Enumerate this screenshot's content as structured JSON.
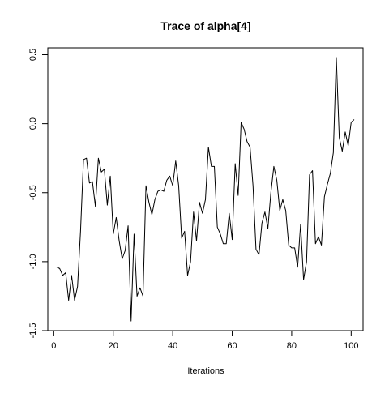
{
  "chart_data": {
    "type": "line",
    "title": "Trace of alpha[4]",
    "xlabel": "Iterations",
    "ylabel": "",
    "xlim": [
      -2,
      104
    ],
    "ylim": [
      -1.5,
      0.55
    ],
    "xticks": [
      "0",
      "20",
      "40",
      "60",
      "80",
      "100"
    ],
    "yticks": [
      "-1.5",
      "-1.0",
      "-0.5",
      "0.0",
      "0.5"
    ],
    "grid": false,
    "legend": "none",
    "line_color": "#000000",
    "series": [
      {
        "x": [
          1,
          2,
          3,
          4,
          5,
          6,
          7,
          8,
          9,
          10,
          11,
          12,
          13,
          14,
          15,
          16,
          17,
          18,
          19,
          20,
          21,
          22,
          23,
          24,
          25,
          26,
          27,
          28,
          29,
          30,
          31,
          32,
          33,
          34,
          35,
          36,
          37,
          38,
          39,
          40,
          41,
          42,
          43,
          44,
          45,
          46,
          47,
          48,
          49,
          50,
          51,
          52,
          53,
          54,
          55,
          56,
          57,
          58,
          59,
          60,
          61,
          62,
          63,
          64,
          65,
          66,
          67,
          68,
          69,
          70,
          71,
          72,
          73,
          74,
          75,
          76,
          77,
          78,
          79,
          80,
          81,
          82,
          83,
          84,
          85,
          86,
          87,
          88,
          89,
          90,
          91,
          92,
          93,
          94,
          95,
          96,
          97,
          98,
          99,
          100,
          101
        ],
        "values": [
          -1.04,
          -1.05,
          -1.1,
          -1.08,
          -1.28,
          -1.1,
          -1.28,
          -1.18,
          -0.78,
          -0.26,
          -0.25,
          -0.43,
          -0.42,
          -0.6,
          -0.25,
          -0.35,
          -0.33,
          -0.59,
          -0.38,
          -0.8,
          -0.68,
          -0.85,
          -0.98,
          -0.92,
          -0.74,
          -1.43,
          -0.8,
          -1.25,
          -1.19,
          -1.25,
          -0.45,
          -0.57,
          -0.66,
          -0.55,
          -0.49,
          -0.48,
          -0.49,
          -0.41,
          -0.38,
          -0.45,
          -0.27,
          -0.45,
          -0.83,
          -0.78,
          -1.1,
          -1.0,
          -0.64,
          -0.85,
          -0.57,
          -0.65,
          -0.55,
          -0.17,
          -0.31,
          -0.31,
          -0.75,
          -0.8,
          -0.87,
          -0.87,
          -0.65,
          -0.84,
          -0.29,
          -0.52,
          0.01,
          -0.04,
          -0.13,
          -0.17,
          -0.45,
          -0.91,
          -0.95,
          -0.72,
          -0.64,
          -0.76,
          -0.5,
          -0.31,
          -0.41,
          -0.63,
          -0.55,
          -0.63,
          -0.88,
          -0.9,
          -0.9,
          -1.04,
          -0.73,
          -1.13,
          -1.0,
          -0.37,
          -0.34,
          -0.87,
          -0.82,
          -0.88,
          -0.53,
          -0.44,
          -0.36,
          -0.21,
          0.48,
          -0.1,
          -0.2,
          -0.06,
          -0.16,
          0.01,
          0.03
        ]
      }
    ]
  }
}
